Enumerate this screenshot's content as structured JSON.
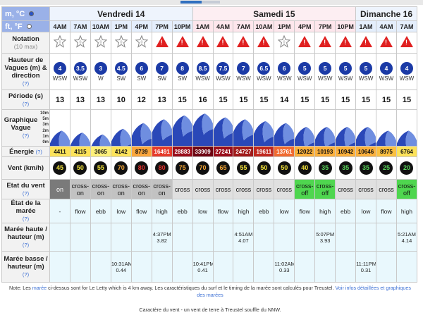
{
  "units": {
    "metric": "m, °C",
    "imperial": "ft, °F"
  },
  "days": [
    {
      "name": "Vendredi 14",
      "span": 7
    },
    {
      "name": "Samedi 15",
      "span": 8
    },
    {
      "name": "Dimanche 16",
      "span": 3
    }
  ],
  "labels": {
    "notation": "Notation",
    "notation_sub": "(10 max)",
    "height": "Hauteur de Vagues (m) & direction",
    "period": "Période (s)",
    "graph": "Graphique Vague",
    "energy": "Énergie",
    "wind": "Vent (km/h)",
    "windstate": "Etat du vent",
    "tidestate": "État de la marée",
    "high": "Marée haute / hauteur (m)",
    "low": "Marée basse / hauteur (m)",
    "help": "(?)"
  },
  "graph_scale": [
    "10m",
    "5m",
    "3m",
    "2m",
    "1m",
    "0m"
  ],
  "hours": [
    "4AM",
    "7AM",
    "10AM",
    "1PM",
    "4PM",
    "7PM",
    "10PM",
    "1AM",
    "4AM",
    "7AM",
    "10AM",
    "1PM",
    "4PM",
    "7PM",
    "10PM",
    "1AM",
    "4AM",
    "7AM"
  ],
  "rating": [
    "star",
    "star",
    "star",
    "star",
    "star",
    "alert",
    "alert",
    "alert",
    "alert",
    "alert",
    "alert",
    "star",
    "alert",
    "alert",
    "alert",
    "alert",
    "alert",
    "alert"
  ],
  "wave_height": [
    "4",
    "3.5",
    "3",
    "4.5",
    "6",
    "7",
    "8",
    "8.5",
    "7.5",
    "7",
    "6.5",
    "6",
    "5",
    "5",
    "5",
    "5",
    "4",
    "4"
  ],
  "wave_dir": [
    "WSW",
    "WSW",
    "W",
    "SW",
    "SW",
    "SW",
    "SW",
    "WSW",
    "WSW",
    "WSW",
    "WSW",
    "WSW",
    "WSW",
    "WSW",
    "WSW",
    "WSW",
    "WSW",
    "WSW"
  ],
  "period": [
    "13",
    "13",
    "13",
    "10",
    "12",
    "13",
    "15",
    "16",
    "15",
    "15",
    "15",
    "14",
    "15",
    "15",
    "15",
    "15",
    "15",
    "15"
  ],
  "energy": [
    "4411",
    "4115",
    "3065",
    "4142",
    "8739",
    "16491",
    "28883",
    "33909",
    "27241",
    "24727",
    "19611",
    "13761",
    "12022",
    "10193",
    "10942",
    "10646",
    "8975",
    "6764"
  ],
  "energy_colors": [
    "#fde35a",
    "#fde35a",
    "#fdf07a",
    "#fde35a",
    "#fba63c",
    "#e63a2a",
    "#9a0c1a",
    "#6e0512",
    "#9a0c1a",
    "#a01a1a",
    "#c0281e",
    "#f06a30",
    "#fbb03c",
    "#fbb03c",
    "#fbb03c",
    "#fbb03c",
    "#fbc040",
    "#fde35a"
  ],
  "wind_speed": [
    "45",
    "50",
    "55",
    "70",
    "80",
    "80",
    "75",
    "70",
    "65",
    "55",
    "50",
    "50",
    "40",
    "35",
    "35",
    "35",
    "25",
    "20"
  ],
  "wind_colors": [
    "#f2e23a",
    "#f2e23a",
    "#f2e23a",
    "#f5a636",
    "#e6302a",
    "#e6302a",
    "#f5a636",
    "#f5a636",
    "#f5a636",
    "#f2e23a",
    "#f2e23a",
    "#f2e23a",
    "#f2e23a",
    "#5bd65b",
    "#5bd65b",
    "#5bd65b",
    "#5bd65b",
    "#5bd65b"
  ],
  "wind_state": [
    [
      "on",
      "on"
    ],
    [
      "cross-on",
      "co"
    ],
    [
      "cross-on",
      "co"
    ],
    [
      "cross-on",
      "co"
    ],
    [
      "cross-on",
      "co"
    ],
    [
      "cross-on",
      "co"
    ],
    [
      "cross",
      "cr"
    ],
    [
      "cross",
      "cr"
    ],
    [
      "cross",
      "cr"
    ],
    [
      "cross",
      "cr"
    ],
    [
      "cross",
      "cr"
    ],
    [
      "cross",
      "cr"
    ],
    [
      "cross-off",
      "off"
    ],
    [
      "cross-off",
      "off"
    ],
    [
      "cross",
      "cr"
    ],
    [
      "cross",
      "cr"
    ],
    [
      "cross",
      "cr"
    ],
    [
      "cross-off",
      "off"
    ]
  ],
  "tide_state": [
    "-",
    "flow",
    "ebb",
    "low",
    "flow",
    "high",
    "ebb",
    "low",
    "flow",
    "high",
    "ebb",
    "low",
    "flow",
    "high",
    "ebb",
    "low",
    "flow",
    "high"
  ],
  "high_tide": [
    "",
    "",
    "",
    "",
    "",
    "4:37PM\n3.82",
    "",
    "",
    "",
    "4:51AM\n4.07",
    "",
    "",
    "",
    "5:07PM\n3.93",
    "",
    "",
    "",
    "5:21AM\n4.14"
  ],
  "low_tide": [
    "",
    "",
    "",
    "10:31AM\n0.44",
    "",
    "",
    "",
    "10:41PM\n0.41",
    "",
    "",
    "",
    "11:02AM\n0.33",
    "",
    "",
    "",
    "11:11PM\n0.31",
    "",
    ""
  ],
  "note": {
    "prefix": "Note: Les ",
    "link1": "marée",
    "middle": " ci-dessus sont for Le Letty which is 4 km away. Les caractéristiques du surf et le timing de la marée sont calculés pour Treustel. ",
    "link2": "Voir infos détaillées et graphiques des marées",
    "wind_char": "Caractère du vent - un vent de terre à Treustel souffle du NNW."
  },
  "colors": {
    "alert": "#e02020",
    "wave": "#1b3aa6",
    "offshore": "#4fd64f"
  }
}
